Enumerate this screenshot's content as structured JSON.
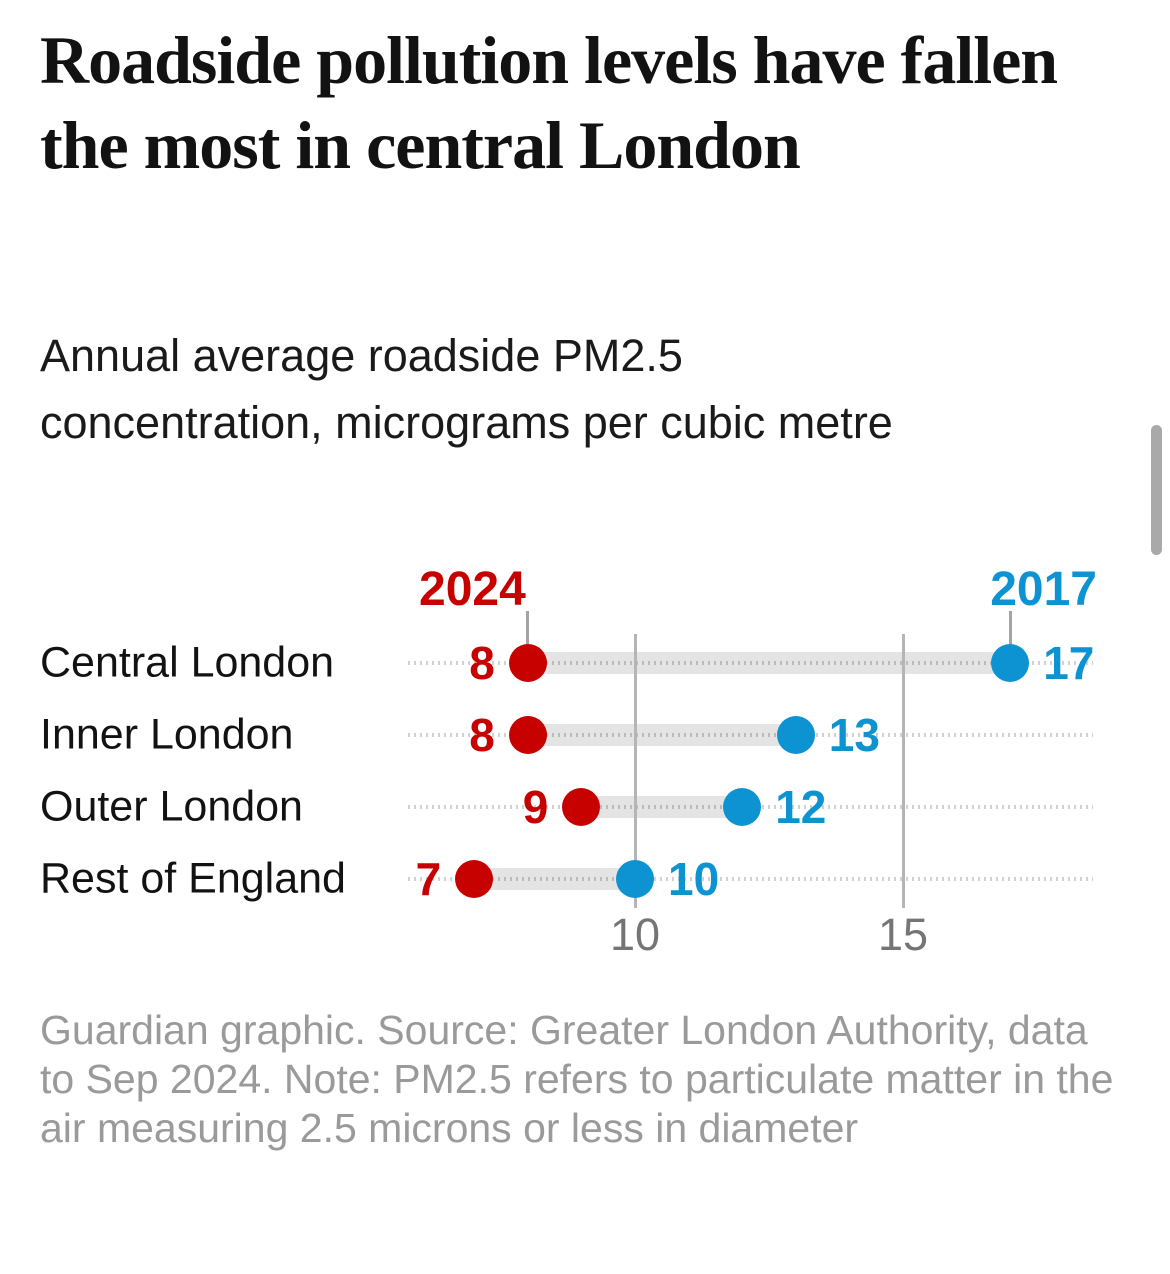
{
  "header": {
    "title": "Roadside pollution levels have fallen the most in central London",
    "subtitle_lines": [
      "Annual average roadside PM2.5",
      "concentration, micrograms per cubic metre"
    ]
  },
  "chart_data": {
    "type": "dumbbell",
    "categories": [
      "Central London",
      "Inner London",
      "Outer London",
      "Rest of England"
    ],
    "series": [
      {
        "name": "2024",
        "color": "#c70000",
        "values": [
          8,
          8,
          9,
          7
        ]
      },
      {
        "name": "2017",
        "color": "#0d93d2",
        "values": [
          17,
          13,
          12,
          10
        ]
      }
    ],
    "xticks": [
      10,
      15
    ],
    "xlim": [
      5.8,
      18.6
    ],
    "grid": true,
    "legend_position": "above-first-row-dots",
    "connector_color": "#e4e4e4",
    "text_color": "#121212",
    "axis_label_color": "#757575",
    "title": "Roadside pollution levels have fallen the most in central London",
    "xlabel": "",
    "ylabel": ""
  },
  "footer": {
    "text": "Guardian graphic. Source: Greater London Authority, data to Sep 2024. Note: PM2.5 refers to particulate matter in the air measuring 2.5 microns or less in diameter"
  }
}
